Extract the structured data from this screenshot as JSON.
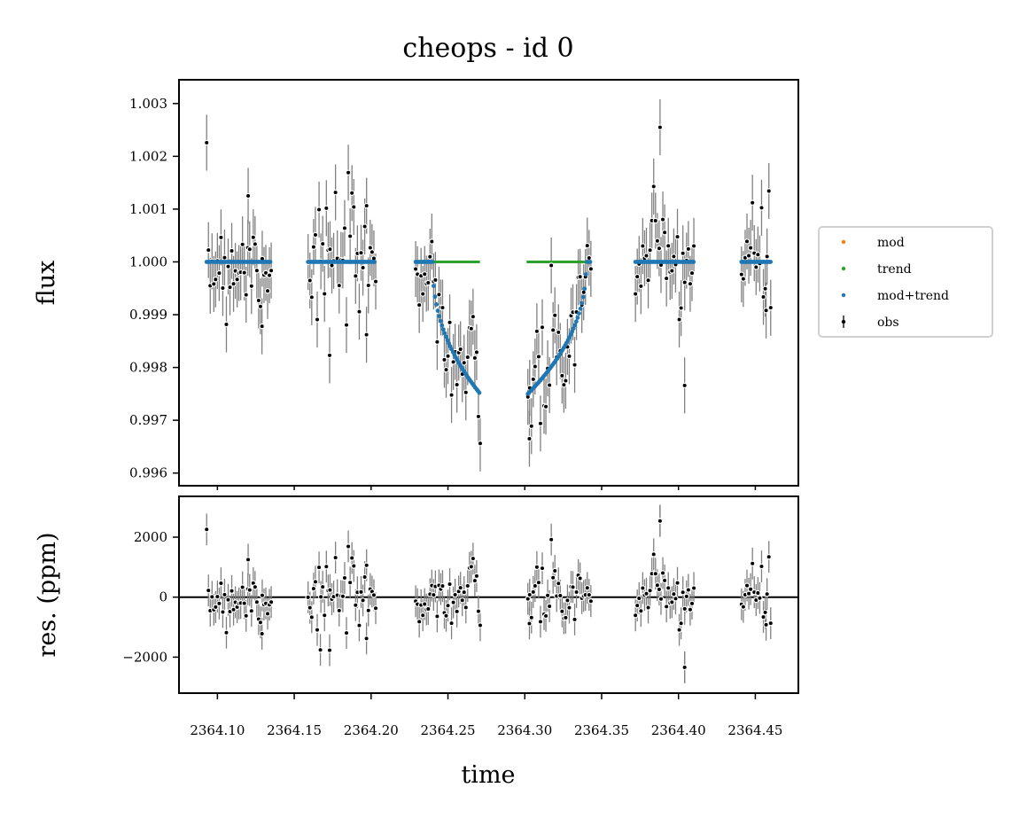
{
  "chart_data": [
    {
      "type": "scatter",
      "panel": "top",
      "title": "cheops - id 0",
      "ylabel": "flux",
      "xlim": [
        2364.075,
        2364.478
      ],
      "ylim": [
        0.99576,
        1.00345
      ],
      "yticks": [
        0.996,
        0.997,
        0.998,
        0.999,
        1.0,
        1.001,
        1.002,
        1.003
      ],
      "ytick_labels": [
        "0.996",
        "0.997",
        "0.998",
        "0.999",
        "1.000",
        "1.001",
        "1.002",
        "1.003"
      ],
      "grid": false,
      "legend": {
        "placement": "right",
        "entries": [
          {
            "label": "mod",
            "color": "#ff7f0e",
            "marker": "dot"
          },
          {
            "label": "trend",
            "color": "#2ca02c",
            "marker": "dot"
          },
          {
            "label": "mod+trend",
            "color": "#1f77b4",
            "marker": "dot"
          },
          {
            "label": "obs",
            "color": "#000000",
            "marker": "errorbar"
          }
        ]
      },
      "visits": [
        {
          "start": 2364.093,
          "end": 2364.135,
          "ingress": null,
          "egress": null
        },
        {
          "start": 2364.159,
          "end": 2364.203,
          "ingress": null,
          "egress": null
        },
        {
          "start": 2364.229,
          "end": 2364.271,
          "ingress": 2364.24,
          "egress": null
        },
        {
          "start": 2364.302,
          "end": 2364.343,
          "ingress": null,
          "egress": 2364.34
        },
        {
          "start": 2364.372,
          "end": 2364.41,
          "ingress": null,
          "egress": null
        },
        {
          "start": 2364.441,
          "end": 2364.46,
          "ingress": null,
          "egress": null
        }
      ],
      "transit": {
        "baseline": 1.0,
        "bottom": 0.9975,
        "trend": 1.0
      },
      "highlight_points": [
        {
          "x": 2364.12,
          "y": 1.00125
        },
        {
          "x": 2364.129,
          "y": 0.99878
        },
        {
          "x": 2364.173,
          "y": 0.99823
        },
        {
          "x": 2364.197,
          "y": 0.99862
        },
        {
          "x": 2364.303,
          "y": 0.99665
        },
        {
          "x": 2364.388,
          "y": 1.00255
        },
        {
          "x": 2364.404,
          "y": 0.99766
        },
        {
          "x": 2364.457,
          "y": 0.99908
        }
      ],
      "errorbar_half_height": 0.00053,
      "colors": {
        "model": "#1f77b4",
        "trend": "#2ca02c",
        "mod": "#ff7f0e",
        "obs": "#000000",
        "error": "#808080"
      }
    },
    {
      "type": "scatter",
      "panel": "bottom",
      "xlabel": "time",
      "ylabel": "res. (ppm)",
      "xlim": [
        2364.075,
        2364.478
      ],
      "ylim": [
        -3200,
        3360
      ],
      "yticks": [
        -2000,
        0,
        2000
      ],
      "ytick_labels": [
        "−2000",
        "0",
        "2000"
      ],
      "xticks": [
        2364.1,
        2364.15,
        2364.2,
        2364.25,
        2364.3,
        2364.35,
        2364.4,
        2364.45
      ],
      "xtick_labels": [
        "2364.10",
        "2364.15",
        "2364.20",
        "2364.25",
        "2364.30",
        "2364.35",
        "2364.40",
        "2364.45"
      ],
      "reference_line": 0,
      "highlight_points": [
        {
          "x": 2364.388,
          "y": 2540
        },
        {
          "x": 2364.404,
          "y": -2340
        },
        {
          "x": 2364.167,
          "y": -1760
        }
      ],
      "errorbar_half_height": 530,
      "grid": false
    }
  ]
}
